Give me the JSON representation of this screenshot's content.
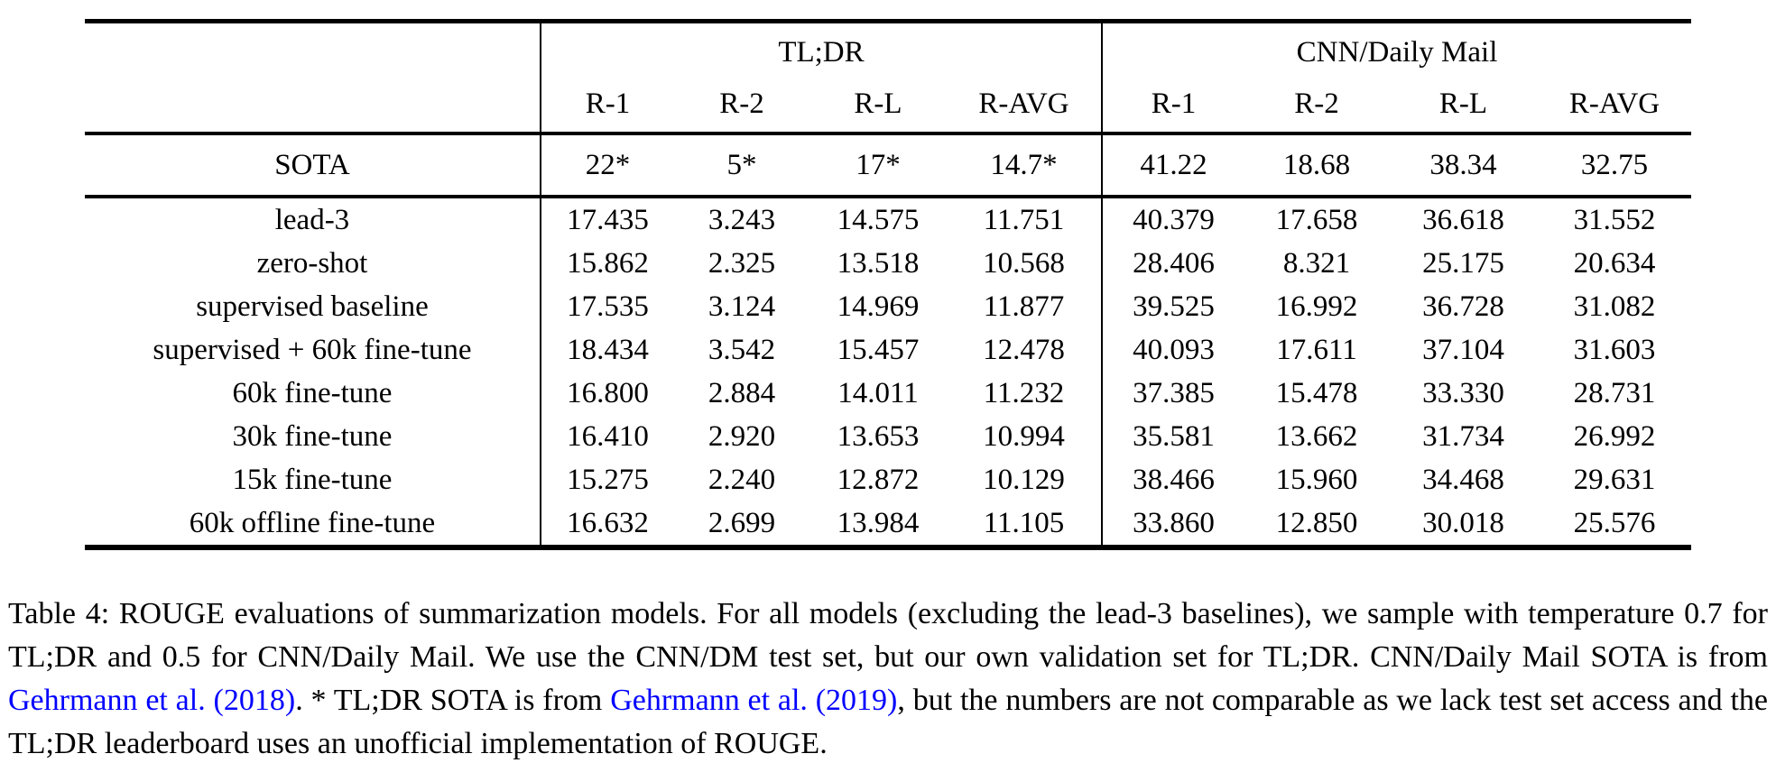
{
  "colors": {
    "background": "#ffffff",
    "text": "#000000",
    "link": "#0000ff",
    "rule": "#000000"
  },
  "table": {
    "col_groups": [
      {
        "label": "TL;DR",
        "columns": [
          "R-1",
          "R-2",
          "R-L",
          "R-AVG"
        ]
      },
      {
        "label": "CNN/Daily Mail",
        "columns": [
          "R-1",
          "R-2",
          "R-L",
          "R-AVG"
        ]
      }
    ],
    "sota_row": {
      "label": "SOTA",
      "values": [
        "22*",
        "5*",
        "17*",
        "14.7*",
        "41.22",
        "18.68",
        "38.34",
        "32.75"
      ],
      "bold": []
    },
    "rows": [
      {
        "label": "lead-3",
        "values": [
          "17.435",
          "3.243",
          "14.575",
          "11.751",
          "40.379",
          "17.658",
          "36.618",
          "31.552"
        ],
        "bold": [
          4,
          5
        ]
      },
      {
        "label": "zero-shot",
        "values": [
          "15.862",
          "2.325",
          "13.518",
          "10.568",
          "28.406",
          "8.321",
          "25.175",
          "20.634"
        ],
        "bold": []
      },
      {
        "label": "supervised baseline",
        "values": [
          "17.535",
          "3.124",
          "14.969",
          "11.877",
          "39.525",
          "16.992",
          "36.728",
          "31.082"
        ],
        "bold": []
      },
      {
        "label": "supervised + 60k fine-tune",
        "values": [
          "18.434",
          "3.542",
          "15.457",
          "12.478",
          "40.093",
          "17.611",
          "37.104",
          "31.603"
        ],
        "bold": [
          0,
          1,
          2,
          3,
          6,
          7
        ]
      },
      {
        "label": "60k fine-tune",
        "values": [
          "16.800",
          "2.884",
          "14.011",
          "11.232",
          "37.385",
          "15.478",
          "33.330",
          "28.731"
        ],
        "bold": []
      },
      {
        "label": "30k fine-tune",
        "values": [
          "16.410",
          "2.920",
          "13.653",
          "10.994",
          "35.581",
          "13.662",
          "31.734",
          "26.992"
        ],
        "bold": []
      },
      {
        "label": "15k fine-tune",
        "values": [
          "15.275",
          "2.240",
          "12.872",
          "10.129",
          "38.466",
          "15.960",
          "34.468",
          "29.631"
        ],
        "bold": []
      },
      {
        "label": "60k offline fine-tune",
        "values": [
          "16.632",
          "2.699",
          "13.984",
          "11.105",
          "33.860",
          "12.850",
          "30.018",
          "25.576"
        ],
        "bold": []
      }
    ]
  },
  "caption": {
    "segments": [
      {
        "type": "text",
        "text": "Table 4: ROUGE evaluations of summarization models. For all models (excluding the lead-3 baselines), we sample with temperature 0.7 for TL;DR and 0.5 for CNN/Daily Mail. We use the CNN/DM test set, but our own validation set for TL;DR. CNN/Daily Mail SOTA is from "
      },
      {
        "type": "link",
        "text": "Gehrmann et al."
      },
      {
        "type": "text",
        "text": " "
      },
      {
        "type": "link",
        "text": "(2018)"
      },
      {
        "type": "text",
        "text": ". * TL;DR SOTA is from "
      },
      {
        "type": "link",
        "text": "Gehrmann et al."
      },
      {
        "type": "text",
        "text": " "
      },
      {
        "type": "link",
        "text": "(2019)"
      },
      {
        "type": "text",
        "text": ", but the numbers are not comparable as we lack test set access and the TL;DR leaderboard uses an unofficial implementation of ROUGE."
      }
    ]
  }
}
